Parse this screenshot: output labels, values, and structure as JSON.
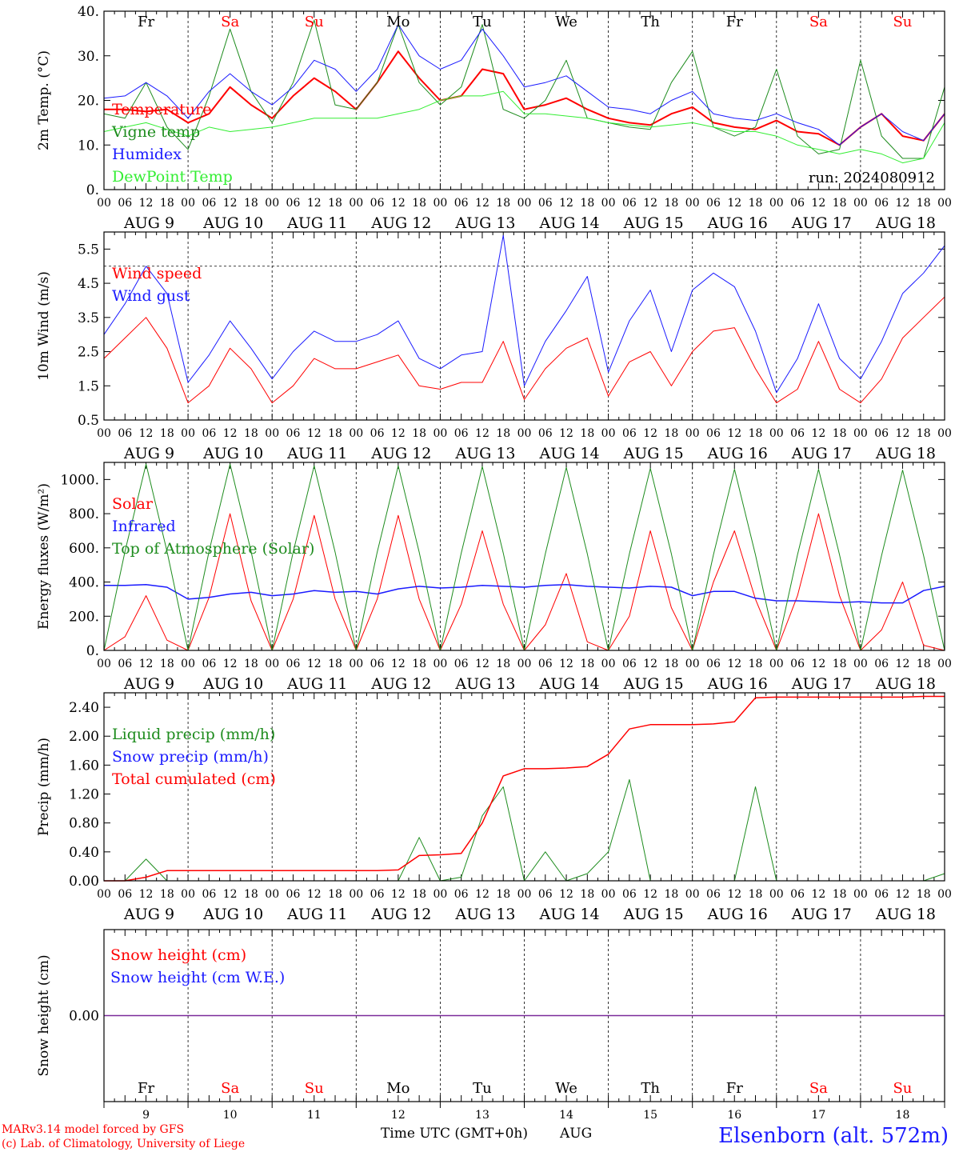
{
  "colors": {
    "red": "#ff0000",
    "dark_green": "#1e8c1e",
    "light_green": "#33ee33",
    "blue": "#1a1aff",
    "purple": "#7a2a9a",
    "weekday_black": "#000000",
    "weekday_red": "#ff0000"
  },
  "days": {
    "weekdays": [
      "Fr",
      "Sa",
      "Su",
      "Mo",
      "Tu",
      "We",
      "Th",
      "Fr",
      "Sa",
      "Su"
    ],
    "weekday_colors": [
      "#000000",
      "#ff0000",
      "#ff0000",
      "#000000",
      "#000000",
      "#000000",
      "#000000",
      "#000000",
      "#ff0000",
      "#ff0000"
    ],
    "date_labels": [
      "AUG  9",
      "AUG 10",
      "AUG 11",
      "AUG 12",
      "AUG 13",
      "AUG 14",
      "AUG 15",
      "AUG 16",
      "AUG 17",
      "AUG 18"
    ],
    "day_numbers": [
      "9",
      "10",
      "11",
      "12",
      "13",
      "14",
      "15",
      "16",
      "17",
      "18"
    ],
    "hour_labels": [
      "00",
      "06",
      "12",
      "18"
    ],
    "final_hour_label": "00"
  },
  "footer": {
    "model_line": "MARv3.14 model forced by GFS",
    "copyright_line": "(c) Lab. of Climatology, University of Liege",
    "xlabel": "Time UTC (GMT+0h)",
    "month": "AUG",
    "station": "Elsenborn (alt. 572m)"
  },
  "chart_data": [
    {
      "type": "line",
      "ylabel": "2m Temp. (°C)",
      "ylim": [
        0,
        40
      ],
      "yticks": [
        0,
        10,
        20,
        30,
        40
      ],
      "ytick_labels": [
        "0.",
        "10.",
        "20.",
        "30.",
        "40."
      ],
      "annotation": "run: 2024080912",
      "x_hours": [
        0,
        6,
        12,
        18,
        24,
        30,
        36,
        42,
        48,
        54,
        60,
        66,
        72,
        78,
        84,
        90,
        96,
        102,
        108,
        114,
        120,
        126,
        132,
        138,
        144,
        150,
        156,
        162,
        168,
        174,
        180,
        186,
        192,
        198,
        204,
        210,
        216,
        222,
        228,
        234,
        240
      ],
      "series": [
        {
          "name": "Temperature",
          "color": "#ff0000",
          "width": 2,
          "values": [
            18,
            18,
            17.5,
            18,
            15,
            17,
            23,
            19,
            16,
            21,
            25,
            22,
            18,
            24,
            31,
            25,
            20,
            21,
            27,
            26,
            18,
            19,
            20.5,
            18,
            16,
            15,
            14.5,
            17,
            18.5,
            15,
            14,
            13.5,
            15.5,
            13,
            12.5,
            10,
            14,
            17,
            12,
            11,
            17
          ]
        },
        {
          "name": "Vigne temp",
          "color": "#1e8c1e",
          "width": 1,
          "values": [
            17,
            16,
            24,
            14,
            9,
            21,
            36,
            22,
            15,
            24,
            38,
            19,
            18,
            24,
            37,
            24,
            19,
            23,
            37,
            18,
            16,
            20,
            29,
            16,
            15,
            14,
            13.5,
            24,
            31,
            14,
            12,
            14,
            27,
            12,
            8,
            9,
            29,
            12,
            7,
            7,
            23
          ]
        },
        {
          "name": "Humidex",
          "color": "#1a1aff",
          "width": 1,
          "values": [
            20.5,
            21,
            24,
            21,
            16,
            22,
            26,
            22,
            19,
            23,
            29,
            27,
            22,
            27,
            37,
            30,
            27,
            29,
            36,
            30,
            23,
            24,
            25.5,
            22,
            18.5,
            18,
            17,
            20,
            22,
            17,
            16,
            15.5,
            17,
            15,
            13.5,
            10,
            14,
            17,
            13,
            11,
            17
          ]
        },
        {
          "name": "DewPoint Temp",
          "color": "#33ee33",
          "width": 1,
          "values": [
            13,
            14,
            15,
            13.5,
            12,
            14,
            13,
            13.5,
            14,
            15,
            16,
            16,
            16,
            16,
            17,
            18,
            20,
            21,
            21,
            22,
            17,
            17,
            16.5,
            16,
            15,
            14.5,
            14,
            14.5,
            15,
            14,
            13,
            13,
            12,
            10,
            9,
            8,
            9,
            8,
            6,
            7,
            15
          ]
        }
      ]
    },
    {
      "type": "line",
      "ylabel": "10m Wind (m/s)",
      "ylim": [
        0.5,
        6.0
      ],
      "yticks": [
        0.5,
        1.5,
        2.5,
        3.5,
        4.5,
        5.5
      ],
      "ytick_labels": [
        "0.5",
        "1.5",
        "2.5",
        "3.5",
        "4.5",
        "5.5"
      ],
      "reference_line": 5.0,
      "x_hours": [
        0,
        6,
        12,
        18,
        24,
        30,
        36,
        42,
        48,
        54,
        60,
        66,
        72,
        78,
        84,
        90,
        96,
        102,
        108,
        114,
        120,
        126,
        132,
        138,
        144,
        150,
        156,
        162,
        168,
        174,
        180,
        186,
        192,
        198,
        204,
        210,
        216,
        222,
        228,
        234,
        240
      ],
      "series": [
        {
          "name": "Wind speed",
          "color": "#ff0000",
          "width": 1,
          "values": [
            2.3,
            2.9,
            3.5,
            2.6,
            1.0,
            1.5,
            2.6,
            2.0,
            1.0,
            1.5,
            2.3,
            2.0,
            2.0,
            2.2,
            2.4,
            1.5,
            1.4,
            1.6,
            1.6,
            2.8,
            1.1,
            2.0,
            2.6,
            2.9,
            1.2,
            2.2,
            2.5,
            1.5,
            2.5,
            3.1,
            3.2,
            2.0,
            1.0,
            1.4,
            2.8,
            1.4,
            1.0,
            1.7,
            2.9,
            3.5,
            4.1
          ]
        },
        {
          "name": "Wind gust",
          "color": "#1a1aff",
          "width": 1,
          "values": [
            3.0,
            3.9,
            5.0,
            4.2,
            1.6,
            2.4,
            3.4,
            2.6,
            1.7,
            2.5,
            3.1,
            2.8,
            2.8,
            3.0,
            3.4,
            2.3,
            2.0,
            2.4,
            2.5,
            5.9,
            1.5,
            2.8,
            3.7,
            4.7,
            1.9,
            3.4,
            4.3,
            2.5,
            4.3,
            4.8,
            4.4,
            3.1,
            1.3,
            2.3,
            3.9,
            2.3,
            1.7,
            2.8,
            4.2,
            4.8,
            5.6
          ]
        }
      ]
    },
    {
      "type": "line",
      "ylabel": "Energy fluxes (W/m²)",
      "ylim": [
        0,
        1100
      ],
      "yticks": [
        0,
        200,
        400,
        600,
        800,
        1000
      ],
      "ytick_labels": [
        "0.",
        "200.",
        "400.",
        "600.",
        "800.",
        "1000."
      ],
      "x_hours": [
        0,
        6,
        12,
        18,
        24,
        30,
        36,
        42,
        48,
        54,
        60,
        66,
        72,
        78,
        84,
        90,
        96,
        102,
        108,
        114,
        120,
        126,
        132,
        138,
        144,
        150,
        156,
        162,
        168,
        174,
        180,
        186,
        192,
        198,
        204,
        210,
        216,
        222,
        228,
        234,
        240
      ],
      "series": [
        {
          "name": "Solar",
          "color": "#ff0000",
          "width": 1,
          "values": [
            0,
            80,
            320,
            60,
            0,
            310,
            800,
            290,
            0,
            300,
            790,
            300,
            0,
            300,
            790,
            300,
            0,
            270,
            700,
            270,
            0,
            150,
            450,
            50,
            0,
            200,
            700,
            250,
            0,
            400,
            700,
            300,
            0,
            320,
            800,
            320,
            0,
            120,
            400,
            30,
            0
          ]
        },
        {
          "name": "Infrared",
          "color": "#1a1aff",
          "width": 1.5,
          "values": [
            380,
            380,
            385,
            370,
            300,
            310,
            330,
            340,
            320,
            330,
            350,
            340,
            345,
            330,
            360,
            375,
            365,
            370,
            380,
            375,
            370,
            380,
            385,
            375,
            370,
            365,
            375,
            370,
            320,
            345,
            345,
            305,
            290,
            290,
            285,
            280,
            285,
            278,
            278,
            350,
            375
          ]
        },
        {
          "name": "Top of Atmosphere (Solar)",
          "color": "#1e8c1e",
          "width": 1,
          "values": [
            0,
            580,
            1090,
            580,
            0,
            580,
            1090,
            580,
            0,
            575,
            1080,
            575,
            0,
            575,
            1080,
            575,
            0,
            570,
            1075,
            570,
            0,
            565,
            1070,
            565,
            0,
            565,
            1065,
            565,
            0,
            560,
            1060,
            560,
            0,
            560,
            1060,
            560,
            0,
            555,
            1055,
            555,
            0
          ]
        }
      ]
    },
    {
      "type": "line",
      "ylabel": "Precip (mm/h)",
      "ylim": [
        0,
        2.6
      ],
      "yticks": [
        0,
        0.4,
        0.8,
        1.2,
        1.6,
        2.0,
        2.4
      ],
      "ytick_labels": [
        "0.00",
        "0.40",
        "0.80",
        "1.20",
        "1.60",
        "2.00",
        "2.40"
      ],
      "x_hours": [
        0,
        6,
        12,
        18,
        24,
        30,
        36,
        42,
        48,
        54,
        60,
        66,
        72,
        78,
        84,
        90,
        96,
        102,
        108,
        114,
        120,
        126,
        132,
        138,
        144,
        150,
        156,
        162,
        168,
        174,
        180,
        186,
        192,
        198,
        204,
        210,
        216,
        222,
        228,
        234,
        240
      ],
      "series": [
        {
          "name": "Liquid precip (mm/h)",
          "color": "#1e8c1e",
          "width": 1,
          "values": [
            0,
            0,
            0.3,
            0,
            0,
            0,
            0,
            0,
            0,
            0,
            0,
            0,
            0,
            0,
            0,
            0.6,
            0,
            0.05,
            0.9,
            1.3,
            0,
            0.4,
            0,
            0.1,
            0.4,
            1.4,
            0,
            0,
            0,
            0,
            0,
            1.3,
            0,
            0,
            0,
            0,
            0,
            0,
            0,
            0,
            0.1
          ]
        },
        {
          "name": "Snow precip (mm/h)",
          "color": "#1a1aff",
          "width": 1,
          "values": [
            0,
            0,
            0,
            0,
            0,
            0,
            0,
            0,
            0,
            0,
            0,
            0,
            0,
            0,
            0,
            0,
            0,
            0,
            0,
            0,
            0,
            0,
            0,
            0,
            0,
            0,
            0,
            0,
            0,
            0,
            0,
            0,
            0,
            0,
            0,
            0,
            0,
            0,
            0,
            0,
            0
          ]
        },
        {
          "name": "Total cumulated (cm)",
          "color": "#ff0000",
          "width": 1.5,
          "values": [
            0,
            0,
            0.05,
            0.14,
            0.14,
            0.14,
            0.14,
            0.14,
            0.14,
            0.14,
            0.14,
            0.14,
            0.14,
            0.14,
            0.15,
            0.35,
            0.36,
            0.38,
            0.8,
            1.45,
            1.55,
            1.55,
            1.56,
            1.58,
            1.75,
            2.1,
            2.16,
            2.16,
            2.16,
            2.17,
            2.2,
            2.53,
            2.54,
            2.54,
            2.54,
            2.54,
            2.54,
            2.54,
            2.54,
            2.55,
            2.55
          ]
        }
      ]
    },
    {
      "type": "line",
      "ylabel": "Snow height (cm)",
      "ylim": [
        -1,
        1
      ],
      "yticks": [
        0
      ],
      "ytick_labels": [
        "0.00"
      ],
      "x_hours": [
        0,
        240
      ],
      "series": [
        {
          "name": "Snow height (cm)",
          "color": "#ff0000",
          "width": 1,
          "values": [
            0,
            0
          ]
        },
        {
          "name": "Snow height (cm W.E.)",
          "color": "#1a1aff",
          "width": 1,
          "values": [
            0,
            0
          ]
        }
      ]
    }
  ]
}
